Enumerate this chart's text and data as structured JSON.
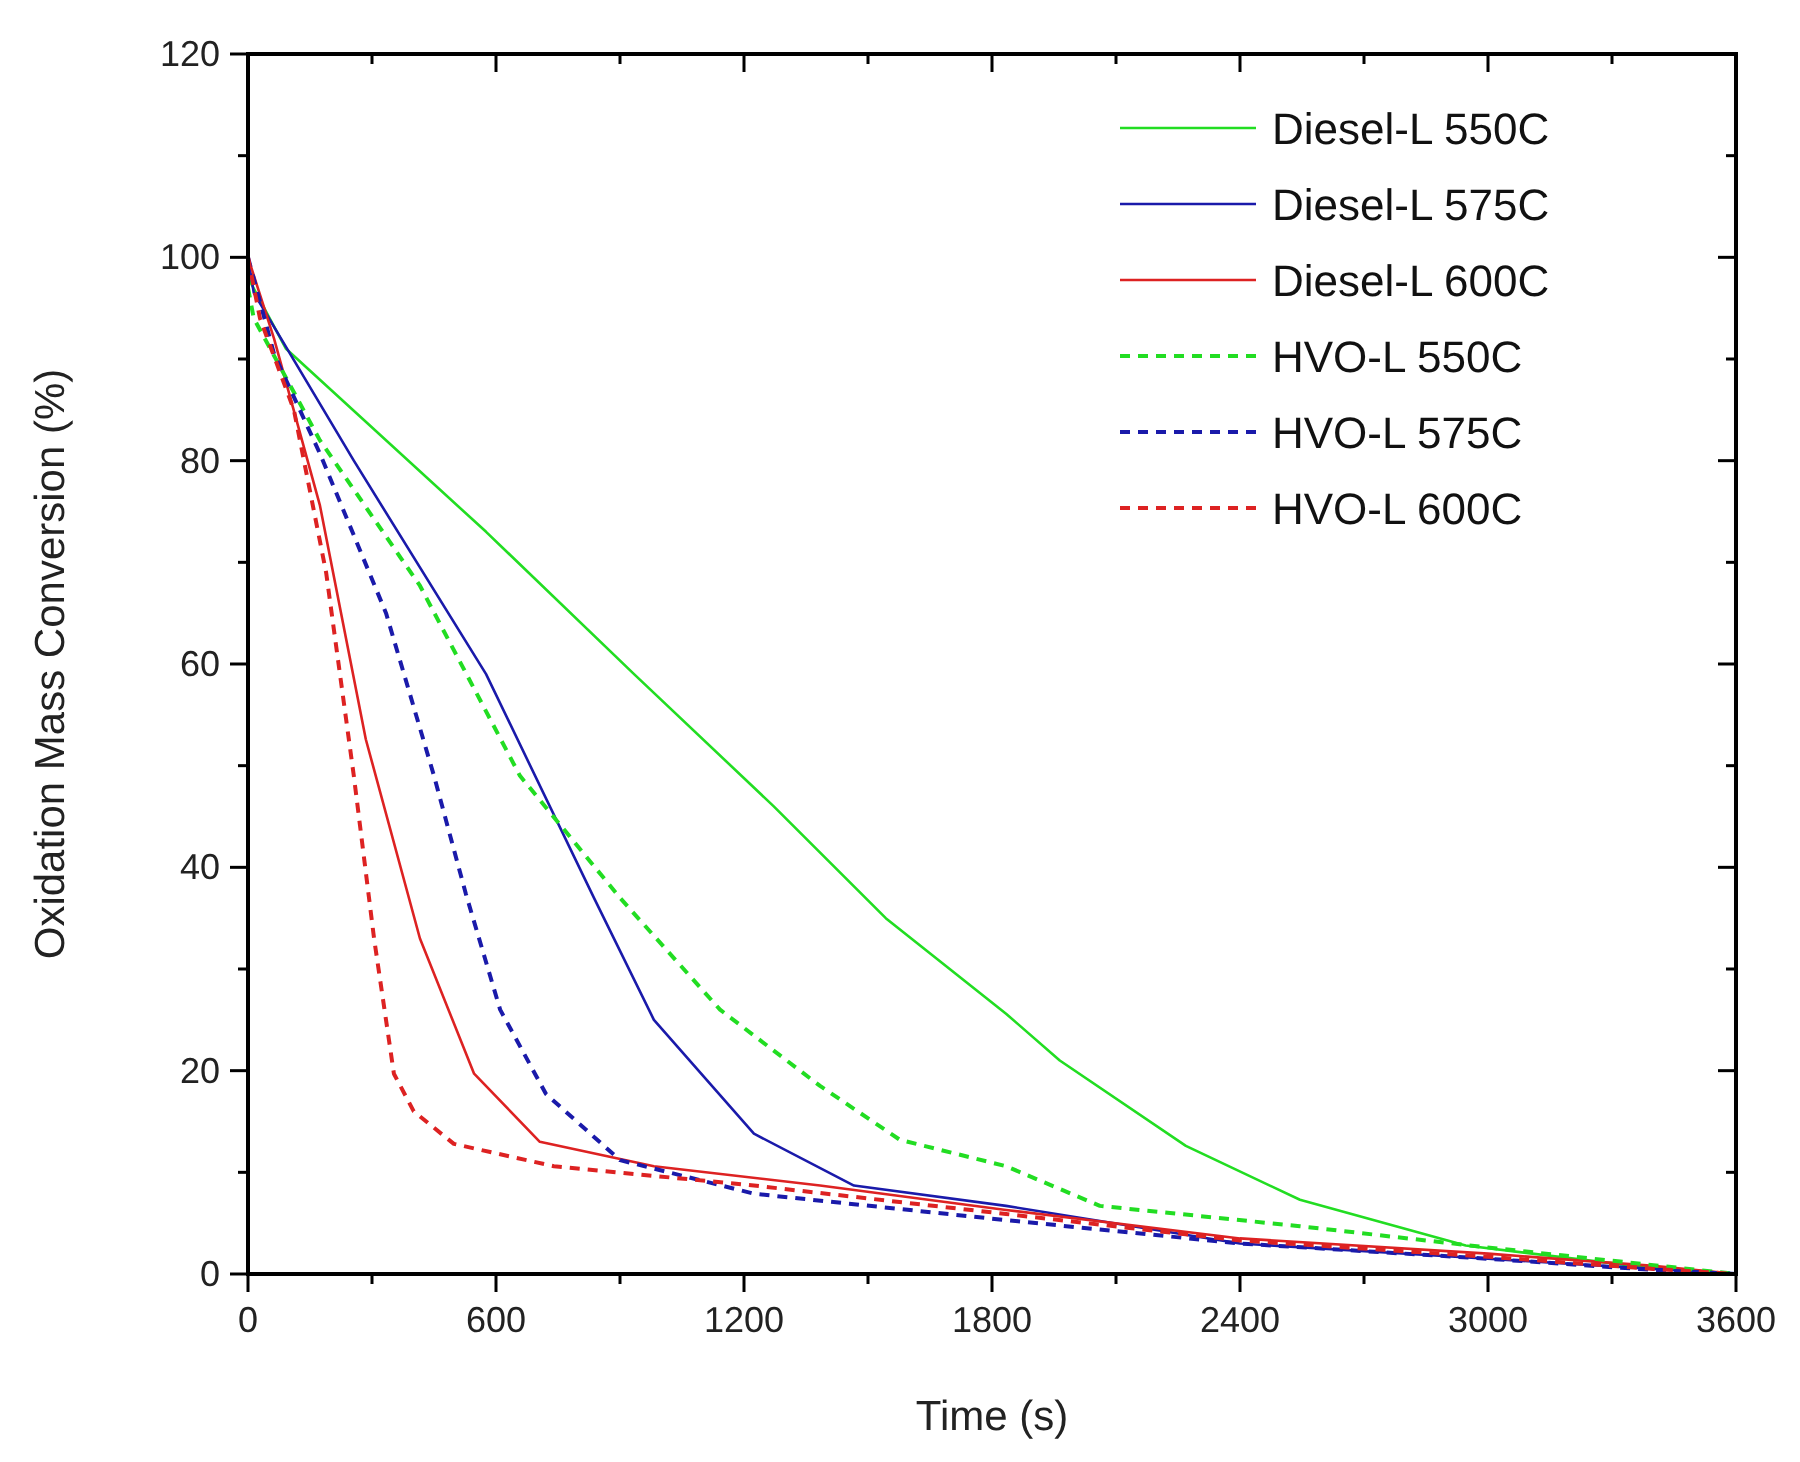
{
  "chart_data": {
    "type": "line",
    "xlabel": "Time (s)",
    "ylabel": "Oxidation Mass Conversion (%)",
    "xlim": [
      0,
      3600
    ],
    "ylim": [
      0,
      120
    ],
    "xticks": [
      0,
      {
        "value": 300,
        "label": null
      },
      600,
      {
        "value": 900,
        "label": null
      },
      1200,
      {
        "value": 1500,
        "label": null
      },
      1800,
      {
        "value": 2100,
        "label": null
      },
      2400,
      {
        "value": 2700,
        "label": null
      },
      3000,
      {
        "value": 3300,
        "label": null
      },
      3600
    ],
    "yticks": [
      0,
      {
        "value": 10,
        "label": null
      },
      20,
      {
        "value": 30,
        "label": null
      },
      40,
      {
        "value": 50,
        "label": null
      },
      60,
      {
        "value": 70,
        "label": null
      },
      80,
      {
        "value": 90,
        "label": null
      },
      100,
      {
        "value": 110,
        "label": null
      },
      120
    ],
    "grid": false,
    "legend": "top right",
    "series": [
      {
        "name": "Diesel-L 550C",
        "color": "#22dd22",
        "line_style": "solid",
        "x": [
          0,
          92,
          576,
          934,
          1272,
          1543,
          1834,
          1964,
          2269,
          2545,
          2946,
          3353,
          3600
        ],
        "values": [
          98,
          91,
          73,
          59,
          46,
          35,
          25.6,
          21,
          12.6,
          7.3,
          2.8,
          0.8,
          0
        ]
      },
      {
        "name": "Diesel-L 575C",
        "color": "#1a1aaa",
        "line_style": "solid",
        "x": [
          0,
          14,
          256,
          576,
          837,
          982,
          1224,
          1466,
          1834,
          2400,
          3000,
          3400,
          3600
        ],
        "values": [
          100,
          96.5,
          80,
          59,
          37,
          25,
          13.8,
          8.7,
          6.7,
          3,
          1.5,
          0.5,
          0
        ]
      },
      {
        "name": "Diesel-L 600C",
        "color": "#dd2222",
        "line_style": "solid",
        "x": [
          0,
          63,
          174,
          285,
          416,
          547,
          706,
          982,
          1384,
          1834,
          2400,
          3000,
          3400,
          3600
        ],
        "values": [
          100,
          92,
          75.6,
          52.6,
          33,
          19.7,
          13,
          10.6,
          8.7,
          6.3,
          3.5,
          2,
          0.8,
          0
        ]
      },
      {
        "name": "HVO-L 550C",
        "color": "#22dd22",
        "line_style": "dashed",
        "x": [
          0,
          14,
          174,
          416,
          658,
          900,
          1142,
          1384,
          1577,
          1834,
          2061,
          2545,
          2980,
          3600
        ],
        "values": [
          97,
          94,
          82,
          67.7,
          49,
          37,
          26,
          18.5,
          13.2,
          10.6,
          6.7,
          4.7,
          2.7,
          0
        ]
      },
      {
        "name": "HVO-L 575C",
        "color": "#1a1aaa",
        "line_style": "dashed",
        "x": [
          0,
          63,
          174,
          334,
          450,
          527,
          610,
          721,
          900,
          1224,
          1834,
          2400,
          3000,
          3400,
          3600
        ],
        "values": [
          100,
          90.5,
          80.7,
          65,
          49,
          37.4,
          26,
          17.7,
          11.2,
          7.9,
          5.3,
          3,
          1.5,
          0.4,
          0
        ]
      },
      {
        "name": "HVO-L 600C",
        "color": "#dd2222",
        "line_style": "dashed",
        "x": [
          0,
          29,
          111,
          189,
          256,
          305,
          353,
          401,
          498,
          740,
          1224,
          1834,
          2400,
          3000,
          3400,
          3600
        ],
        "values": [
          100,
          94,
          85,
          69,
          49,
          33,
          19.7,
          16,
          12.8,
          10.6,
          8.7,
          5.9,
          3.3,
          1.7,
          0.5,
          0
        ]
      }
    ]
  }
}
